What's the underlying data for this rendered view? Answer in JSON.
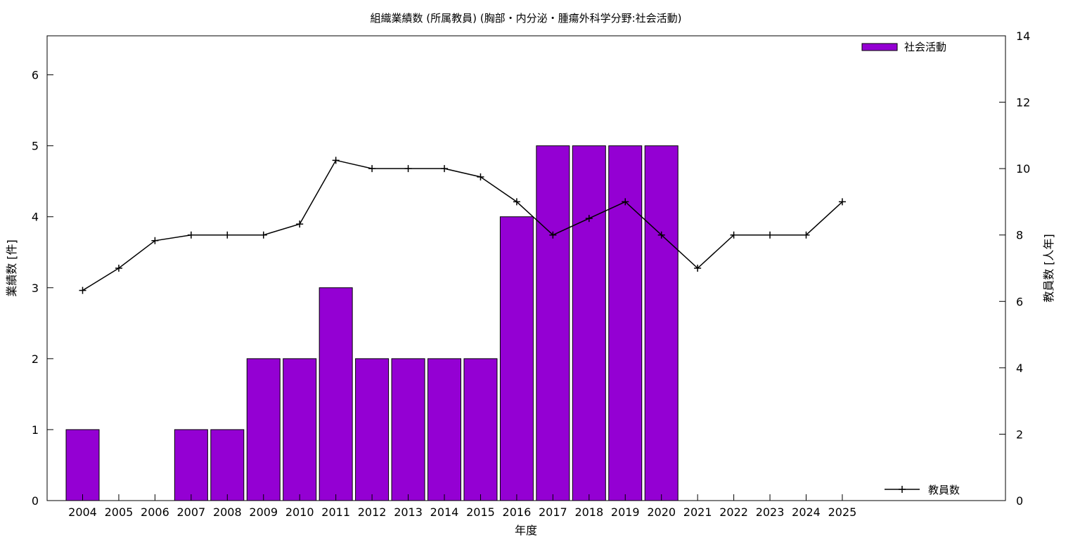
{
  "chart_data": {
    "type": "bar",
    "title": "組織業績数 (所属教員) (胸部・内分泌・腫瘍外科学分野:社会活動)",
    "xlabel": "年度",
    "ylabel": "業績数 [件]",
    "y2label": "教員数 [人年]",
    "categories": [
      "2004",
      "2005",
      "2006",
      "2007",
      "2008",
      "2009",
      "2010",
      "2011",
      "2012",
      "2013",
      "2014",
      "2015",
      "2016",
      "2017",
      "2018",
      "2019",
      "2020",
      "2021",
      "2022",
      "2023",
      "2024",
      "2025"
    ],
    "ylim": [
      0,
      6.55
    ],
    "y2lim": [
      0,
      14
    ],
    "yticks": [
      "0",
      "1",
      "2",
      "3",
      "4",
      "5",
      "6"
    ],
    "y2ticks": [
      "0",
      "2",
      "4",
      "6",
      "8",
      "10",
      "12",
      "14"
    ],
    "grid": false,
    "series": [
      {
        "name": "社会活動",
        "type": "bar",
        "axis": "left",
        "color": "#9400d3",
        "values": [
          1,
          0,
          0,
          1,
          1,
          2,
          2,
          3,
          2,
          2,
          2,
          2,
          4,
          5,
          5,
          5,
          5,
          0,
          0,
          0,
          0,
          0
        ]
      },
      {
        "name": "教員数",
        "type": "line",
        "axis": "right",
        "color": "#000000",
        "marker": "plus",
        "values": [
          6.33,
          7.0,
          7.83,
          8.0,
          8.0,
          8.0,
          8.33,
          10.25,
          10.0,
          10.0,
          10.0,
          9.75,
          9.0,
          8.0,
          8.5,
          9.0,
          8.0,
          7.0,
          8.0,
          8.0,
          8.0,
          9.0
        ]
      }
    ],
    "legend": {
      "bars_position": "top-right",
      "line_position": "bottom-right"
    }
  }
}
